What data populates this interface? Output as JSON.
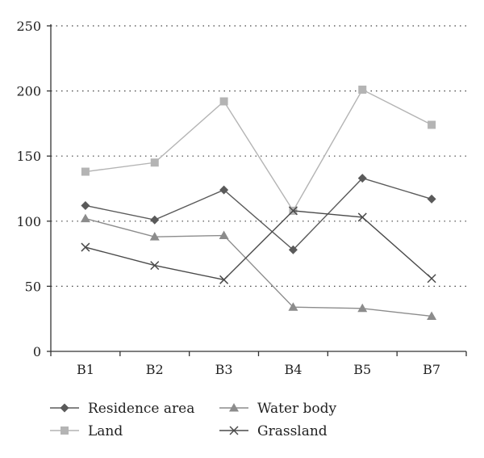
{
  "chart_data": {
    "type": "line",
    "categories": [
      "B1",
      "B2",
      "B3",
      "B4",
      "B5",
      "B7"
    ],
    "ylim": [
      0,
      250
    ],
    "yticks": [
      0,
      50,
      100,
      150,
      200,
      250
    ],
    "grid": "horizontal dotted",
    "legend_position": "bottom",
    "series": [
      {
        "name": "Residence area",
        "values": [
          112,
          101,
          124,
          78,
          133,
          117
        ],
        "color": "#5a5a5a",
        "marker": "diamond"
      },
      {
        "name": "Land",
        "values": [
          138,
          145,
          192,
          108,
          201,
          174
        ],
        "color": "#b4b4b4",
        "marker": "square"
      },
      {
        "name": "Water body",
        "values": [
          102,
          88,
          89,
          34,
          33,
          27
        ],
        "color": "#8c8c8c",
        "marker": "triangle"
      },
      {
        "name": "Grassland",
        "values": [
          80,
          66,
          55,
          108,
          103,
          56
        ],
        "color": "#4a4a4a",
        "marker": "cross"
      }
    ]
  }
}
